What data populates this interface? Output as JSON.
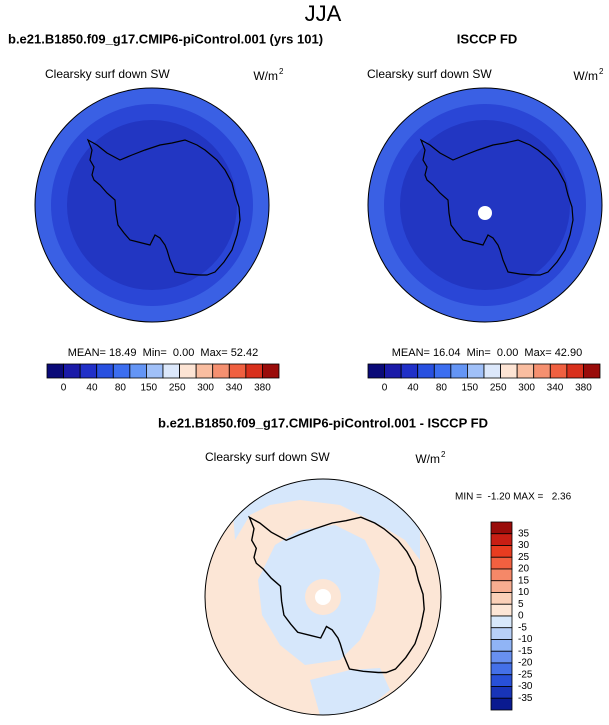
{
  "title": "JJA",
  "panels": [
    {
      "title": "b.e21.B1850.f09_g17.CMIP6-piControl.001 (yrs 101)",
      "variable": "Clearsky surf down SW",
      "units": "W/m",
      "units_exp": "2",
      "stats": "MEAN= 18.49  Min=  0.00  Max= 52.42"
    },
    {
      "title": "ISCCP FD",
      "variable": "Clearsky surf down SW",
      "units": "W/m",
      "units_exp": "2",
      "stats": "MEAN= 16.04  Min=  0.00  Max= 42.90"
    }
  ],
  "colorbar": {
    "colors": [
      "#0a0a78",
      "#1a1aa8",
      "#2030c8",
      "#2850e0",
      "#3c6ef0",
      "#6495f5",
      "#a0c0f8",
      "#dce8fb",
      "#fde4d4",
      "#f9bda0",
      "#f59070",
      "#f06040",
      "#d8301c",
      "#9a0c0a"
    ],
    "labels": [
      "0",
      "40",
      "80",
      "150",
      "250",
      "300",
      "340",
      "380"
    ]
  },
  "difference": {
    "title": "b.e21.B1850.f09_g17.CMIP6-piControl.001 - ISCCP FD",
    "variable": "Clearsky surf down SW",
    "units": "W/m",
    "units_exp": "2",
    "stats": "MIN =  -1.20 MAX =   2.36",
    "colorbar": {
      "colors": [
        "#9a0c0a",
        "#c81e14",
        "#e83c20",
        "#f26040",
        "#f58868",
        "#f8ad90",
        "#fbd0b8",
        "#fde6d6",
        "#d8e8fb",
        "#b8d0f8",
        "#90b4f5",
        "#6890f0",
        "#4470e8",
        "#2850d8",
        "#1834b8",
        "#0a1a90"
      ],
      "labels": [
        "35",
        "30",
        "25",
        "20",
        "15",
        "10",
        "5",
        "0",
        "-5",
        "-10",
        "-15",
        "-20",
        "-25",
        "-30",
        "-35"
      ]
    }
  }
}
